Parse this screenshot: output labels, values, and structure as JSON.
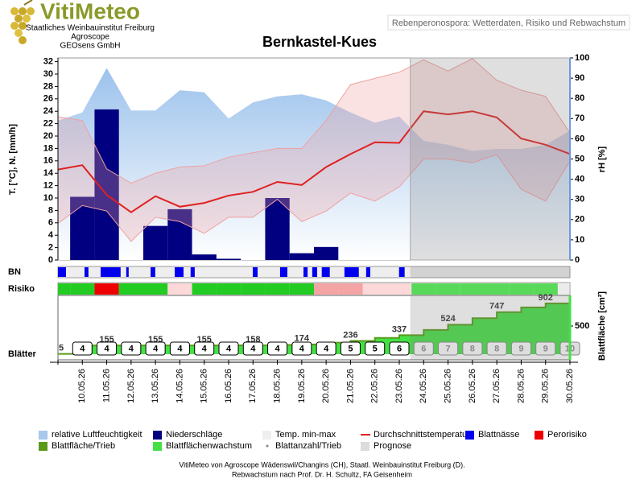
{
  "header": {
    "logo": "VitiMeteo",
    "lines": [
      "Staatliches Weinbauinstitut Freiburg",
      "Agroscope",
      "GEOsens GmbH"
    ],
    "subtitle": "Rebenperonospora: Wetterdaten, Risiko und Rebwachstum"
  },
  "chart_data": {
    "type": "combo",
    "title": "Bernkastel-Kues",
    "categories": [
      null,
      "10.05.26",
      "11.05.26",
      "12.05.26",
      "13.05.26",
      "14.05.26",
      "15.05.26",
      "16.05.26",
      "17.05.26",
      "18.05.26",
      "19.05.26",
      "20.05.26",
      "21.05.26",
      "22.05.26",
      "23.05.26",
      "24.05.26",
      "25.05.26",
      "26.05.26",
      "27.05.26",
      "28.05.26",
      "29.05.26",
      "30.05.26"
    ],
    "y_label": "T. [°C], N. [mm/h]",
    "y2_label": "rH [%]",
    "ylim": [
      0,
      32.6
    ],
    "yticks": [
      0,
      2,
      4,
      6,
      8,
      10,
      12,
      14,
      16,
      18,
      20,
      22,
      24,
      26,
      28,
      30,
      32
    ],
    "y2lim": [
      0,
      100
    ],
    "y2ticks": [
      0,
      10,
      20,
      30,
      40,
      50,
      60,
      70,
      80,
      90,
      100
    ],
    "series": [
      {
        "name": "relative Luftfeuchtigkeit",
        "color": "#a8c8ec",
        "type": "area",
        "axis": "y2",
        "values": [
          69,
          73,
          95,
          74,
          74,
          84,
          83,
          70,
          78,
          81,
          82,
          79,
          73,
          68,
          71,
          59,
          57,
          54,
          55,
          55,
          57,
          64
        ]
      },
      {
        "name": "Niederschläge",
        "color": "#000080",
        "type": "bar",
        "values": [
          0,
          10.2,
          24.3,
          0,
          5.5,
          8.2,
          0.9,
          0.2,
          0,
          10,
          1.1,
          2.1,
          0,
          0,
          0,
          0,
          0,
          0,
          0,
          0,
          0,
          0
        ]
      },
      {
        "name": "Temp. min-max",
        "color": "#f0a0a0",
        "type": "band",
        "min": [
          5.9,
          8.8,
          7.9,
          3,
          6.9,
          6.2,
          4.3,
          6.9,
          6.9,
          9.8,
          6.2,
          7.9,
          10.8,
          9.5,
          11.8,
          16.3,
          16.3,
          15.7,
          17,
          11.4,
          9.5,
          16
        ],
        "max": [
          23.1,
          22.5,
          14.7,
          12.4,
          14,
          15,
          15.2,
          16.6,
          17.3,
          18,
          18,
          22.5,
          28.3,
          29.3,
          30.3,
          32.3,
          30.5,
          32.5,
          29,
          27.4,
          26.4,
          20.5
        ]
      },
      {
        "name": "Durchschnittstemperatur",
        "color": "#e02020",
        "type": "line",
        "values": [
          14.6,
          15.3,
          10.5,
          7.7,
          10.3,
          8.6,
          9.2,
          10.4,
          11,
          12.6,
          12.1,
          15,
          17.1,
          19,
          18.9,
          24,
          23.5,
          24,
          23,
          19.6,
          18.6,
          17.1
        ]
      }
    ]
  },
  "leaf_wetness": {
    "label": "BN",
    "name": "Blattnässe",
    "color": "#0000ee",
    "intervals": [
      [
        0,
        0.33
      ],
      [
        1.09,
        1.25
      ],
      [
        1.75,
        2.57
      ],
      [
        2.8,
        2.9
      ],
      [
        3.8,
        3.99
      ],
      [
        4.79,
        5.15
      ],
      [
        5.44,
        5.61
      ],
      [
        7.99,
        8.19
      ],
      [
        9.11,
        9.41
      ],
      [
        10.07,
        10.24
      ],
      [
        10.43,
        10.63
      ],
      [
        10.82,
        11.15
      ],
      [
        11.75,
        12.34
      ],
      [
        12.64,
        12.81
      ],
      [
        13.99,
        14.22
      ]
    ]
  },
  "risk": {
    "label": "Risiko",
    "name": "Perorisiko",
    "legend_color": "#ee0000",
    "colors": [
      "#22cc22",
      "#fcd8d8",
      "#f4a4a4",
      "#ee0000"
    ],
    "levels": [
      0,
      0,
      3,
      0,
      0,
      1,
      0,
      0,
      0,
      0,
      0,
      2,
      2,
      1,
      1,
      0,
      0,
      0,
      0,
      0,
      0,
      null
    ]
  },
  "leaves": {
    "label": "Blätter",
    "axis_label": "Blattfläche [cm²]",
    "ylim": [
      0,
      1000
    ],
    "yticks": [
      500
    ],
    "area_name": "Blattfläche/Trieb",
    "area_color": "#5a9a1a",
    "growth_name": "Blattflächenwachstum",
    "growth_color": "#44e044",
    "count_name": "Blattanzahl/Trieb",
    "area": [
      5,
      155,
      155,
      155,
      155,
      155,
      155,
      157,
      158,
      165,
      174,
      205,
      236,
      290,
      337,
      430,
      524,
      640,
      747,
      830,
      902,
      902
    ],
    "count": [
      null,
      4,
      4,
      4,
      4,
      4,
      4,
      4,
      4,
      4,
      4,
      4,
      5,
      5,
      6,
      6,
      7,
      8,
      8,
      9,
      9,
      10
    ]
  },
  "forecast": {
    "name": "Prognose",
    "color": "#dcdcdc"
  },
  "footer": [
    "VitiMeteo von Agroscope Wädenswil/Changins (CH), Staatl. Weinbauinstitut Freiburg (D).",
    "Rebwachstum nach Prof. Dr. H. Schultz, FA Geisenheim"
  ]
}
